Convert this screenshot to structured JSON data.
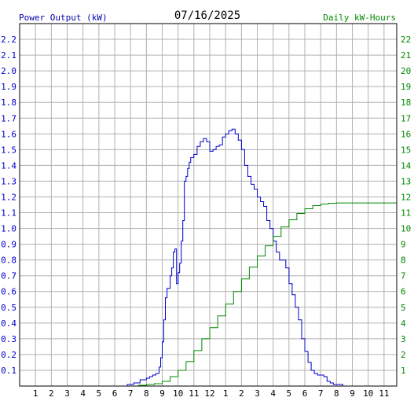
{
  "chart_data": [
    {
      "type": "line",
      "title": "07/16/2025",
      "ylabel": "Power Output (kW)",
      "y2label": "Daily kW-Hours",
      "grid": true,
      "x_ticks": [
        "1",
        "2",
        "3",
        "4",
        "5",
        "6",
        "7",
        "8",
        "9",
        "10",
        "11",
        "12",
        "1",
        "2",
        "3",
        "4",
        "5",
        "6",
        "7",
        "8",
        "9",
        "10",
        "11"
      ],
      "y_ticks": [
        "0.1",
        "0.2",
        "0.3",
        "0.4",
        "0.5",
        "0.6",
        "0.7",
        "0.8",
        "0.9",
        "1.0",
        "1.1",
        "1.2",
        "1.3",
        "1.4",
        "1.5",
        "1.6",
        "1.7",
        "1.8",
        "1.9",
        "2.0",
        "2.1",
        "2.2"
      ],
      "y2_ticks": [
        "1",
        "2",
        "3",
        "4",
        "5",
        "6",
        "7",
        "8",
        "9",
        "10",
        "11",
        "12",
        "13",
        "14",
        "15",
        "16",
        "17",
        "18",
        "19",
        "20",
        "21",
        "22"
      ],
      "xlim": [
        0,
        23.8
      ],
      "ylim": [
        0,
        2.3
      ],
      "y2lim": [
        0,
        23
      ],
      "colors": {
        "power": "#0000cc",
        "energy": "#008800",
        "grid": "#b0b0b0",
        "frame": "#000000"
      },
      "series": [
        {
          "key": "power",
          "axis": "left",
          "x": [
            6.4,
            6.8,
            7.2,
            7.6,
            8.0,
            8.2,
            8.4,
            8.6,
            8.8,
            8.9,
            9.0,
            9.1,
            9.2,
            9.3,
            9.5,
            9.6,
            9.7,
            9.8,
            9.9,
            10.0,
            10.1,
            10.2,
            10.3,
            10.4,
            10.5,
            10.6,
            10.7,
            10.8,
            11.0,
            11.2,
            11.4,
            11.6,
            11.8,
            12.0,
            12.2,
            12.4,
            12.6,
            12.8,
            13.0,
            13.2,
            13.4,
            13.6,
            13.8,
            14.0,
            14.2,
            14.4,
            14.6,
            14.8,
            15.0,
            15.2,
            15.4,
            15.6,
            15.8,
            16.0,
            16.2,
            16.4,
            16.6,
            16.8,
            17.0,
            17.2,
            17.4,
            17.6,
            17.8,
            18.0,
            18.2,
            18.4,
            18.6,
            18.8,
            19.0,
            19.2,
            19.4,
            19.6,
            19.8,
            20.0,
            20.2,
            20.4,
            20.6,
            20.8,
            21.0,
            21.5
          ],
          "values": [
            0.0,
            0.01,
            0.02,
            0.04,
            0.05,
            0.06,
            0.07,
            0.08,
            0.12,
            0.18,
            0.28,
            0.42,
            0.56,
            0.62,
            0.7,
            0.75,
            0.85,
            0.87,
            0.65,
            0.72,
            0.78,
            0.92,
            1.05,
            1.3,
            1.33,
            1.38,
            1.42,
            1.45,
            1.47,
            1.52,
            1.55,
            1.57,
            1.55,
            1.49,
            1.5,
            1.52,
            1.53,
            1.58,
            1.6,
            1.62,
            1.63,
            1.6,
            1.56,
            1.5,
            1.4,
            1.33,
            1.28,
            1.25,
            1.2,
            1.17,
            1.14,
            1.05,
            1.0,
            0.92,
            0.85,
            0.8,
            0.8,
            0.75,
            0.65,
            0.58,
            0.5,
            0.42,
            0.3,
            0.22,
            0.15,
            0.1,
            0.08,
            0.07,
            0.07,
            0.06,
            0.03,
            0.02,
            0.01,
            0.01,
            0.01,
            0.0,
            0.0,
            0.0,
            0.0,
            0.0
          ]
        },
        {
          "key": "energy",
          "axis": "right",
          "x": [
            6.4,
            7.0,
            7.5,
            8.0,
            8.5,
            9.0,
            9.5,
            10.0,
            10.5,
            11.0,
            11.5,
            12.0,
            12.5,
            13.0,
            13.5,
            14.0,
            14.5,
            15.0,
            15.5,
            16.0,
            16.5,
            17.0,
            17.5,
            18.0,
            18.5,
            19.0,
            19.5,
            20.0,
            21.0,
            22.0,
            23.0,
            23.8
          ],
          "values": [
            0.0,
            0.0,
            0.05,
            0.1,
            0.15,
            0.3,
            0.6,
            1.0,
            1.55,
            2.25,
            3.0,
            3.7,
            4.45,
            5.2,
            6.0,
            6.8,
            7.55,
            8.25,
            8.9,
            9.5,
            10.1,
            10.55,
            10.95,
            11.25,
            11.45,
            11.55,
            11.6,
            11.62,
            11.62,
            11.62,
            11.62,
            11.62
          ]
        }
      ]
    }
  ]
}
